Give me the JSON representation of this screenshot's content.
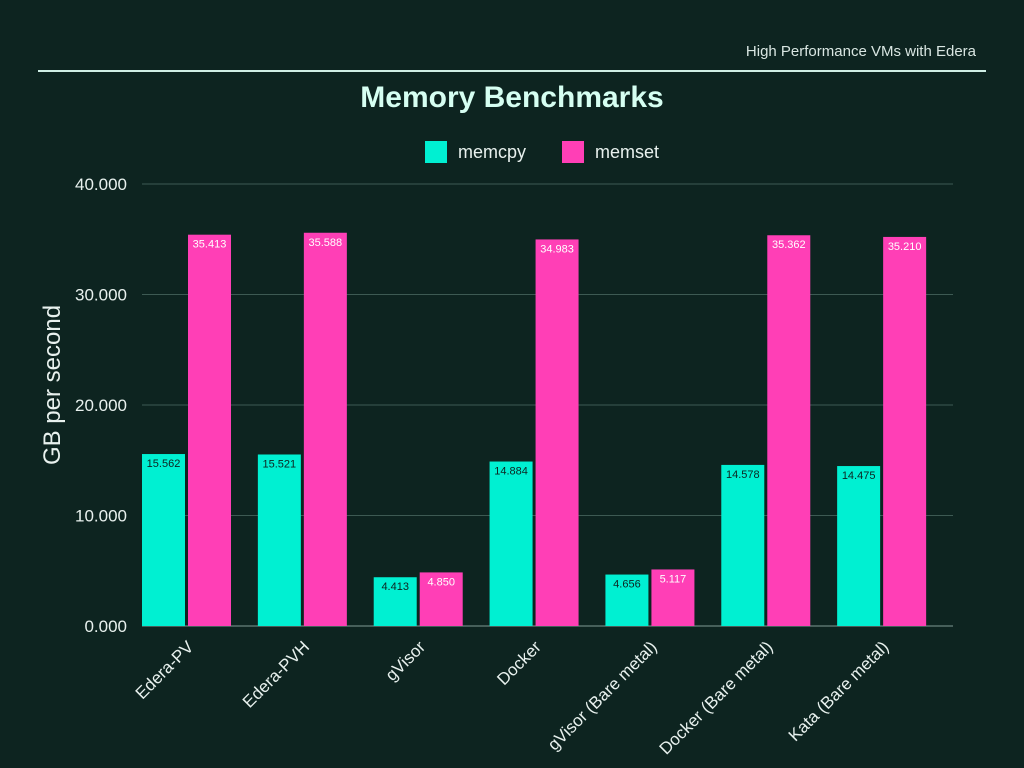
{
  "header": {
    "text": "High Performance VMs with Edera"
  },
  "chart_data": {
    "type": "bar",
    "title": "Memory Benchmarks",
    "ylabel": "GB per second",
    "xlabel": "",
    "ylim": [
      0,
      40
    ],
    "yticks": [
      "0.000",
      "10.000",
      "20.000",
      "30.000",
      "40.000"
    ],
    "categories": [
      "Edera-PV",
      "Edera-PVH",
      "gVisor",
      "Docker",
      "gVisor (Bare metal)",
      "Docker (Bare metal)",
      "Kata (Bare metal)"
    ],
    "series": [
      {
        "name": "memcpy",
        "color": "#00f0d2",
        "values": [
          15.562,
          15.521,
          4.413,
          14.884,
          4.656,
          14.578,
          14.475
        ],
        "labels": [
          "15.562",
          "15.521",
          "4.413",
          "14.884",
          "4.656",
          "14.578",
          "14.475"
        ]
      },
      {
        "name": "memset",
        "color": "#ff3fb6",
        "values": [
          35.413,
          35.588,
          4.85,
          34.983,
          5.117,
          35.362,
          35.21
        ],
        "labels": [
          "35.413",
          "35.588",
          "4.850",
          "34.983",
          "5.117",
          "35.362",
          "35.210"
        ]
      }
    ],
    "grid": true,
    "legend": "top-center"
  }
}
